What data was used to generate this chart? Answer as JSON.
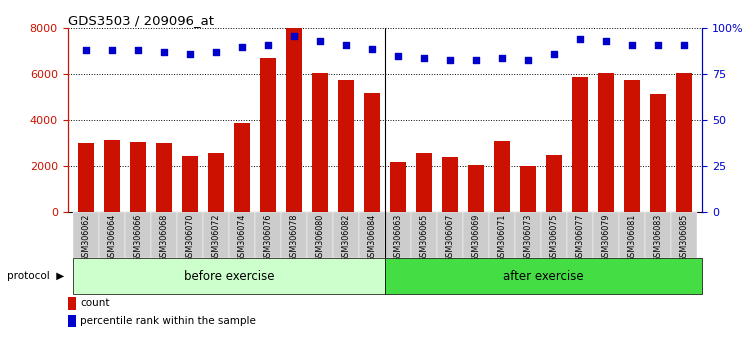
{
  "title": "GDS3503 / 209096_at",
  "categories": [
    "GSM306062",
    "GSM306064",
    "GSM306066",
    "GSM306068",
    "GSM306070",
    "GSM306072",
    "GSM306074",
    "GSM306076",
    "GSM306078",
    "GSM306080",
    "GSM306082",
    "GSM306084",
    "GSM306063",
    "GSM306065",
    "GSM306067",
    "GSM306069",
    "GSM306071",
    "GSM306073",
    "GSM306075",
    "GSM306077",
    "GSM306079",
    "GSM306081",
    "GSM306083",
    "GSM306085"
  ],
  "counts": [
    3000,
    3150,
    3050,
    3000,
    2450,
    2600,
    3900,
    6700,
    8000,
    6050,
    5750,
    5200,
    2200,
    2600,
    2400,
    2050,
    3100,
    2000,
    2500,
    5900,
    6050,
    5750,
    5150,
    6050
  ],
  "percentile_ranks": [
    88,
    88,
    88,
    87,
    86,
    87,
    90,
    91,
    96,
    93,
    91,
    89,
    85,
    84,
    83,
    83,
    84,
    83,
    86,
    94,
    93,
    91,
    91,
    91
  ],
  "before_exercise_count": 12,
  "ylim_left": [
    0,
    8000
  ],
  "ylim_right": [
    0,
    100
  ],
  "yticks_left": [
    0,
    2000,
    4000,
    6000,
    8000
  ],
  "yticks_right": [
    0,
    25,
    50,
    75,
    100
  ],
  "bar_color": "#CC1100",
  "dot_color": "#0000CC",
  "before_color": "#CCFFCC",
  "after_color": "#44DD44",
  "bar_width": 0.6,
  "legend_count_label": "count",
  "legend_pct_label": "percentile rank within the sample",
  "protocol_label": "protocol",
  "before_label": "before exercise",
  "after_label": "after exercise",
  "tick_bg_color": "#CCCCCC"
}
